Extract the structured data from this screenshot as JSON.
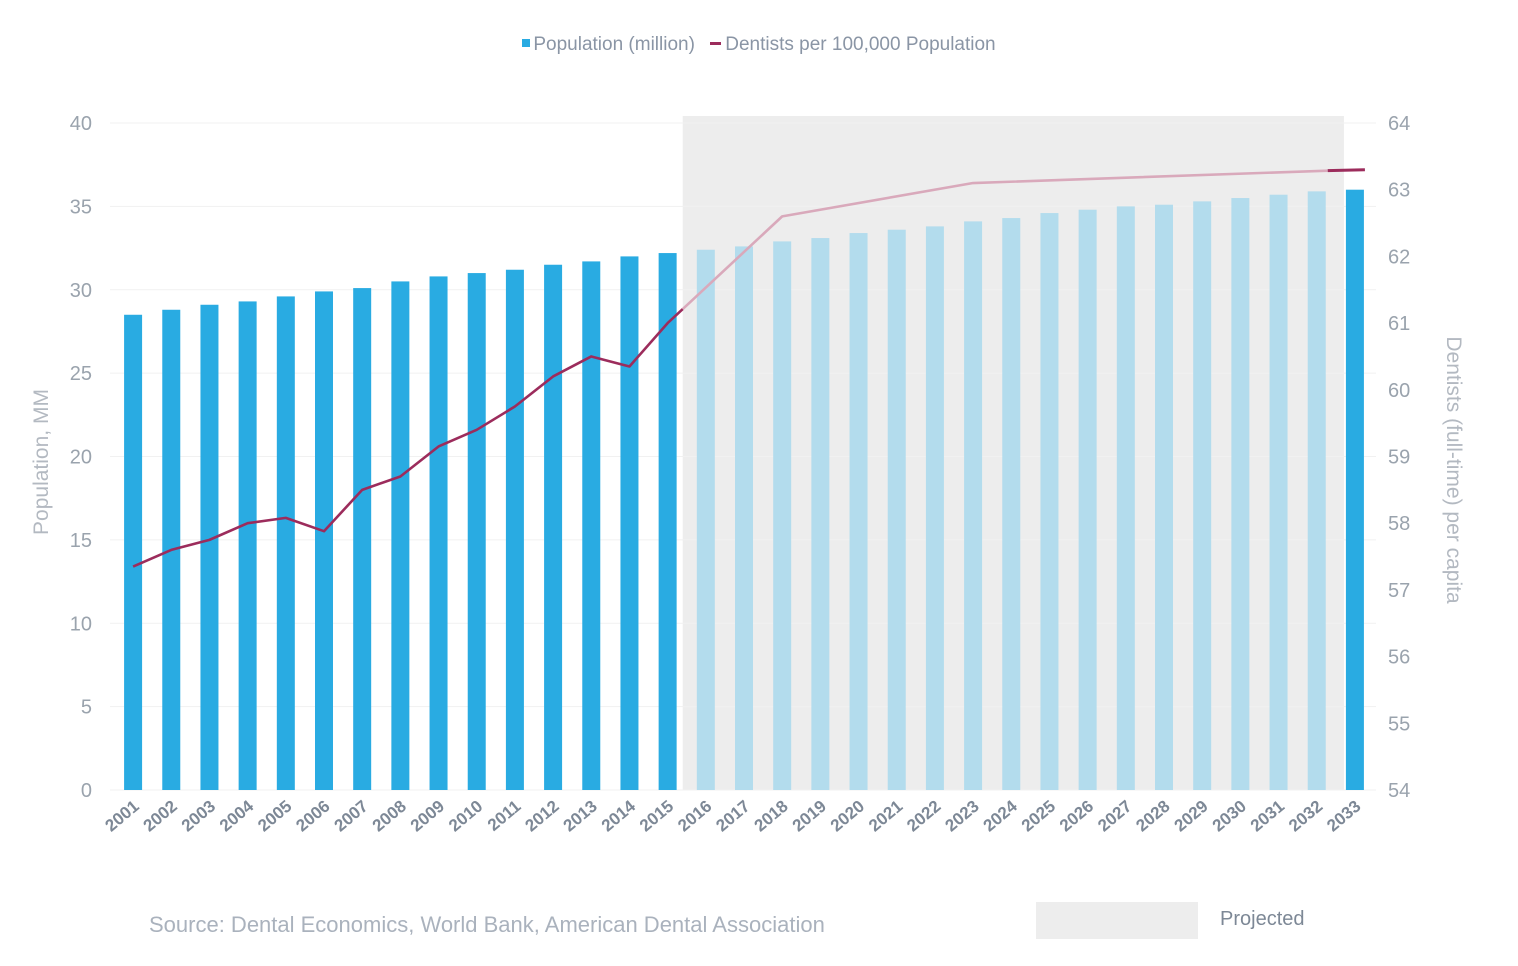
{
  "legend": {
    "bars_label": "Population (million)",
    "line_label": "Dentists per 100,000 Population"
  },
  "source": "Source: Dental Economics, World Bank, American Dental Association",
  "projected_label": "Projected",
  "colors": {
    "bar_actual": "#29abe2",
    "bar_projected": "#b3dced",
    "line_actual": "#9c2c5c",
    "line_projected": "#d9a9bb",
    "projected_shade": "#ededed",
    "grid": "#f1f1f1"
  },
  "chart_data": {
    "type": "bar",
    "categories": [
      "2001",
      "2002",
      "2003",
      "2004",
      "2005",
      "2006",
      "2007",
      "2008",
      "2009",
      "2010",
      "2011",
      "2012",
      "2013",
      "2014",
      "2015",
      "2016",
      "2017",
      "2018",
      "2019",
      "2020",
      "2021",
      "2022",
      "2023",
      "2024",
      "2025",
      "2026",
      "2027",
      "2028",
      "2029",
      "2030",
      "2031",
      "2032",
      "2033"
    ],
    "series": [
      {
        "name": "Population (million)",
        "axis": "left",
        "values": [
          28.5,
          28.8,
          29.1,
          29.3,
          29.6,
          29.9,
          30.1,
          30.5,
          30.8,
          31.0,
          31.2,
          31.5,
          31.7,
          32.0,
          32.2,
          32.4,
          32.6,
          32.9,
          33.1,
          33.4,
          33.6,
          33.8,
          34.1,
          34.3,
          34.6,
          34.8,
          35.0,
          35.1,
          35.3,
          35.5,
          35.7,
          35.9,
          36.0
        ]
      },
      {
        "name": "Dentists per 100,000 Population",
        "axis": "right",
        "type": "line",
        "values": [
          57.35,
          57.6,
          57.75,
          58.0,
          58.08,
          57.88,
          58.5,
          58.7,
          59.15,
          59.4,
          59.75,
          60.2,
          60.5,
          60.35,
          61.0,
          null,
          null,
          62.6,
          null,
          null,
          null,
          null,
          63.1,
          null,
          null,
          null,
          null,
          null,
          null,
          null,
          null,
          null,
          63.3
        ]
      }
    ],
    "projected_from": "2016",
    "ylabel": "Population, MM",
    "y2label": "Dentists (full-time) per capita",
    "ylim": [
      0,
      40
    ],
    "y2lim": [
      54,
      64
    ],
    "yticks": [
      0,
      5,
      10,
      15,
      20,
      25,
      30,
      35,
      40
    ],
    "y2ticks": [
      54,
      55,
      56,
      57,
      58,
      59,
      60,
      61,
      62,
      63,
      64
    ],
    "grid": true,
    "legend_position": "top-center"
  }
}
